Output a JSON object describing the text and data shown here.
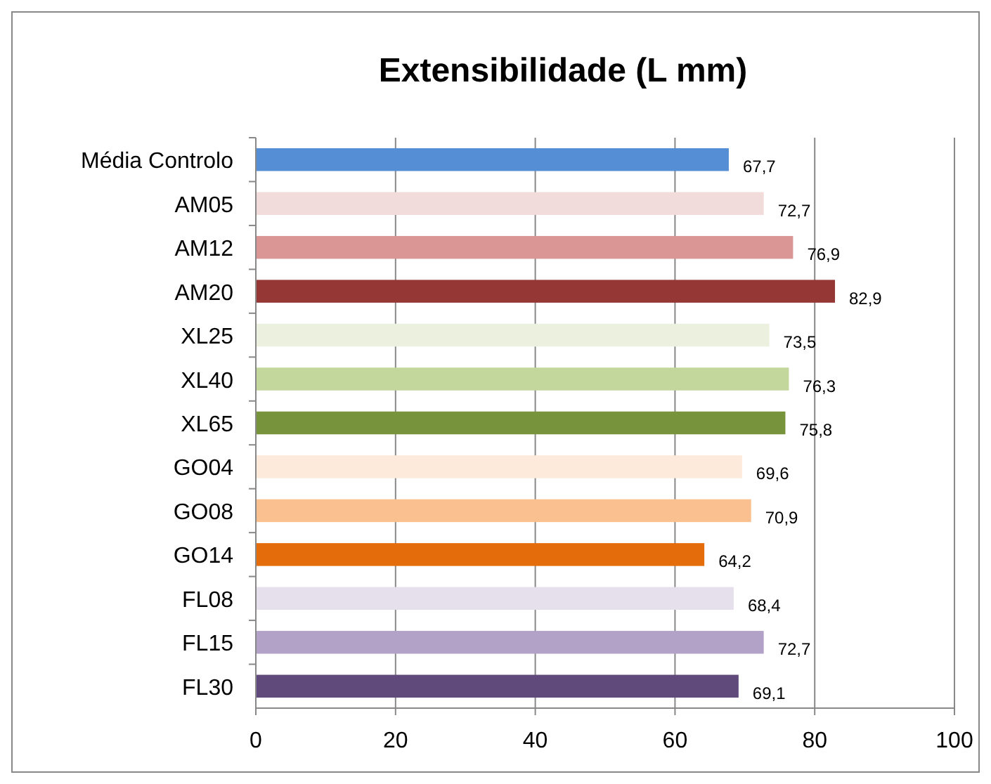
{
  "chart_data": {
    "type": "bar",
    "orientation": "horizontal",
    "title": "Extensibilidade (L mm)",
    "categories": [
      "Média Controlo",
      "AM05",
      "AM12",
      "AM20",
      "XL25",
      "XL40",
      "XL65",
      "GO04",
      "GO08",
      "GO14",
      "FL08",
      "FL15",
      "FL30"
    ],
    "values": [
      67.7,
      72.7,
      76.9,
      82.9,
      73.5,
      76.3,
      75.8,
      69.6,
      70.9,
      64.2,
      68.4,
      72.7,
      69.1
    ],
    "colors": [
      "#558ed5",
      "#f2dcdb",
      "#d99694",
      "#953735",
      "#ebf1de",
      "#c3d69b",
      "#77933c",
      "#fdeada",
      "#fac090",
      "#e46c0a",
      "#e6e0ec",
      "#b3a2c7",
      "#604a7b"
    ],
    "value_labels": [
      "67,7",
      "72,7",
      "76,9",
      "82,9",
      "73,5",
      "76,3",
      "75,8",
      "69,6",
      "70,9",
      "64,2",
      "68,4",
      "72,7",
      "69,1"
    ],
    "xlim": [
      0,
      100
    ],
    "xticks": [
      0,
      20,
      40,
      60,
      80,
      100
    ],
    "grid": "x"
  }
}
